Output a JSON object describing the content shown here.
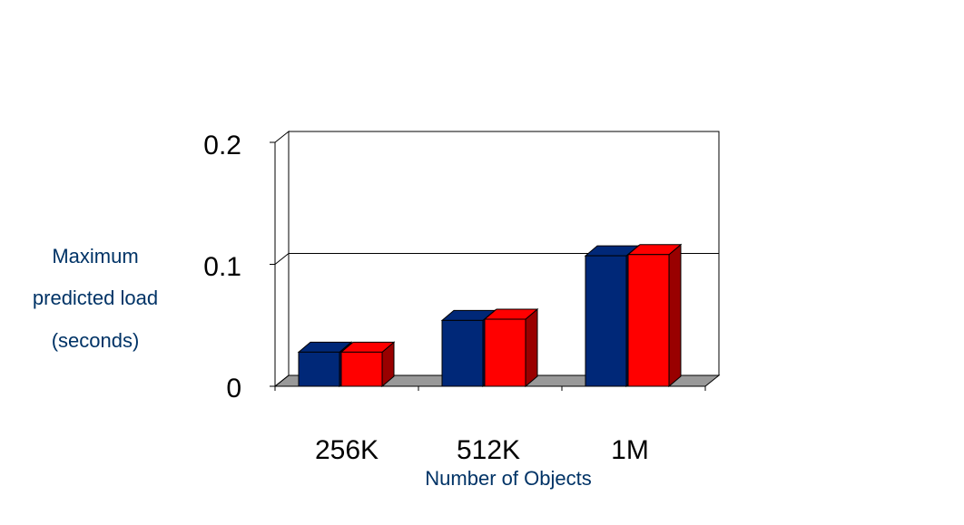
{
  "chart_data": {
    "type": "bar",
    "title": "",
    "xlabel": "Number of Objects",
    "ylabel_lines": [
      "Maximum",
      "predicted load",
      "(seconds)"
    ],
    "categories": [
      "256K",
      "512K",
      "1M"
    ],
    "series": [
      {
        "values": [
          0.028,
          0.054,
          0.107
        ],
        "color": "#002878",
        "side_color": "#000f4a"
      },
      {
        "values": [
          0.028,
          0.055,
          0.108
        ],
        "color": "#ff0000",
        "side_color": "#990000"
      }
    ],
    "yticks": [
      "0",
      "0.1",
      "0.2"
    ],
    "ylim": [
      0,
      0.2
    ],
    "grid": true,
    "floor_color": "#999999"
  }
}
